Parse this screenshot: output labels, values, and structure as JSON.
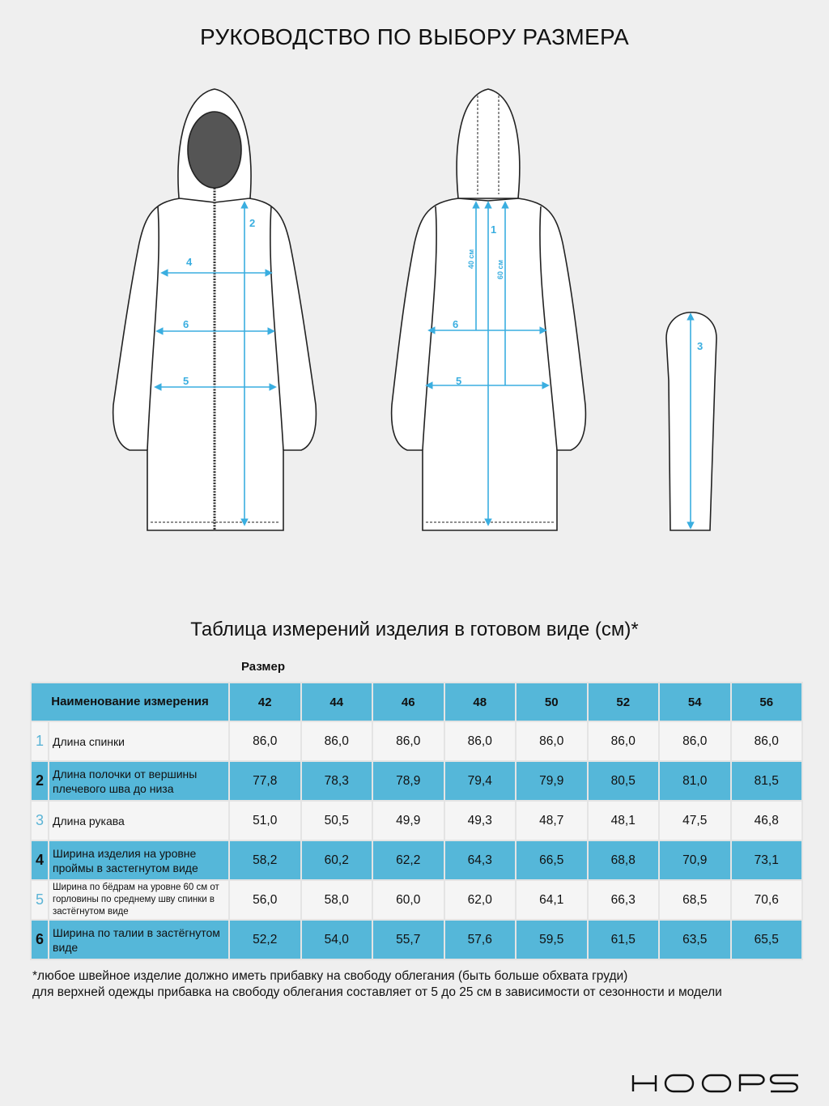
{
  "title": "РУКОВОДСТВО ПО ВЫБОРУ РАЗМЕРА",
  "diagram": {
    "front_labels": [
      "2",
      "4",
      "6",
      "5"
    ],
    "back_labels": [
      "1",
      "6",
      "5"
    ],
    "back_dims": [
      "40 см",
      "60 см"
    ],
    "sleeve_label": "3",
    "accent_color": "#3aaee0"
  },
  "table": {
    "subtitle": "Таблица измерений изделия в готовом виде (см)*",
    "size_label": "Размер",
    "name_header": "Наименование измерения",
    "sizes": [
      "42",
      "44",
      "46",
      "48",
      "50",
      "52",
      "54",
      "56"
    ],
    "rows": [
      {
        "num": "1",
        "name": "Длина спинки",
        "values": [
          "86,0",
          "86,0",
          "86,0",
          "86,0",
          "86,0",
          "86,0",
          "86,0",
          "86,0"
        ]
      },
      {
        "num": "2",
        "name": "Длина полочки от вершины плечевого шва до низа",
        "values": [
          "77,8",
          "78,3",
          "78,9",
          "79,4",
          "79,9",
          "80,5",
          "81,0",
          "81,5"
        ]
      },
      {
        "num": "3",
        "name": "Длина рукава",
        "values": [
          "51,0",
          "50,5",
          "49,9",
          "49,3",
          "48,7",
          "48,1",
          "47,5",
          "46,8"
        ]
      },
      {
        "num": "4",
        "name": "Ширина изделия на уровне проймы в застегнутом виде",
        "values": [
          "58,2",
          "60,2",
          "62,2",
          "64,3",
          "66,5",
          "68,8",
          "70,9",
          "73,1"
        ]
      },
      {
        "num": "5",
        "name": "Ширина по бёдрам на уровне 60 см от горловины по среднему шву спинки в застёгнутом виде",
        "values": [
          "56,0",
          "58,0",
          "60,0",
          "62,0",
          "64,1",
          "66,3",
          "68,5",
          "70,6"
        ]
      },
      {
        "num": "6",
        "name": "Ширина по талии в застёгнутом виде",
        "values": [
          "52,2",
          "54,0",
          "55,7",
          "57,6",
          "59,5",
          "61,5",
          "63,5",
          "65,5"
        ]
      }
    ]
  },
  "footnote": {
    "line1": "*любое швейное изделие должно иметь прибавку на свободу облегания (быть больше обхвата груди)",
    "line2": "для верхней одежды прибавка на свободу облегания составляет от 5 до 25 см в зависимости от сезонности и модели"
  },
  "brand": "HOOPS"
}
